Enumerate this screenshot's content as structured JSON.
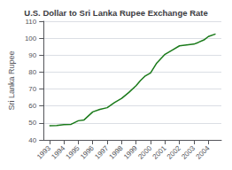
{
  "chart_data": {
    "type": "line",
    "title": "U.S. Dollar to Sri Lanka Rupee Exchange Rate",
    "ylabel": "Sri Lanka Rupee",
    "x": [
      1993,
      1993.5,
      1994,
      1994.5,
      1995,
      1995.4,
      1996,
      1996.5,
      1997,
      1997.5,
      1998,
      1998.5,
      1999,
      1999.3,
      1999.6,
      2000,
      2000.4,
      2001,
      2001.5,
      2002,
      2002.5,
      2003,
      2003.3,
      2003.7,
      2004,
      2004.5
    ],
    "values": [
      48.3,
      48.5,
      49.0,
      49.2,
      51.3,
      51.8,
      56.5,
      58.0,
      59.0,
      62.0,
      64.5,
      68.0,
      72.0,
      75.0,
      77.5,
      79.5,
      85.0,
      90.5,
      93.0,
      95.5,
      96.0,
      96.5,
      97.5,
      99.0,
      101.0,
      102.5
    ],
    "color": "#1a7a1a",
    "xlim": [
      1992.6,
      2004.9
    ],
    "xticks": [
      1993,
      1994,
      1995,
      1996,
      1997,
      1998,
      1999,
      2000,
      2001,
      2002,
      2003,
      2004
    ],
    "ylim": [
      40,
      110
    ],
    "yticks": [
      40,
      50,
      60,
      70,
      80,
      90,
      100,
      110
    ],
    "grid": true
  }
}
